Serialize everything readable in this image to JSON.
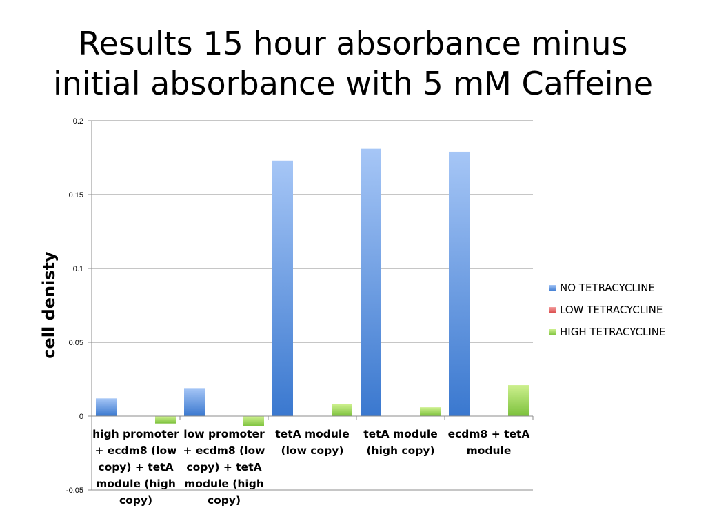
{
  "slide": {
    "title_line1": "Results 15 hour absorbance minus",
    "title_line2": "initial absorbance with 5 mM Caffeine"
  },
  "chart_data": {
    "type": "bar",
    "title": "",
    "ylabel": "cell denisty",
    "xlabel": "",
    "ylim": [
      -0.05,
      0.2
    ],
    "yticks": [
      0.2,
      0.15,
      0.1,
      0.05,
      0,
      -0.05
    ],
    "ytick_labels": [
      "0.2",
      "0.15",
      "0.1",
      "0.05",
      "0",
      "-0.05"
    ],
    "grid": true,
    "legend_position": "right",
    "categories": [
      [
        "high promoter",
        "+ ecdm8 (low",
        "copy) + tetA",
        "module (high",
        "copy)"
      ],
      [
        "low promoter",
        "+ ecdm8 (low",
        "copy) + tetA",
        "module (high",
        "copy)"
      ],
      [
        "tetA module",
        "(low copy)"
      ],
      [
        "tetA module",
        "(high copy)"
      ],
      [
        "ecdm8 + tetA",
        "module"
      ]
    ],
    "series": [
      {
        "name": "NO TETRACYCLINE",
        "color": "#4f86d6",
        "values": [
          0.012,
          0.019,
          0.173,
          0.181,
          0.179
        ]
      },
      {
        "name": "LOW TETRACYCLINE",
        "color": "#e35a5a",
        "values": [
          0,
          0,
          0,
          0,
          0
        ]
      },
      {
        "name": "HIGH TETRACYCLINE",
        "color": "#8fcf4a",
        "values": [
          -0.005,
          -0.007,
          0.008,
          0.006,
          0.021
        ]
      }
    ]
  }
}
